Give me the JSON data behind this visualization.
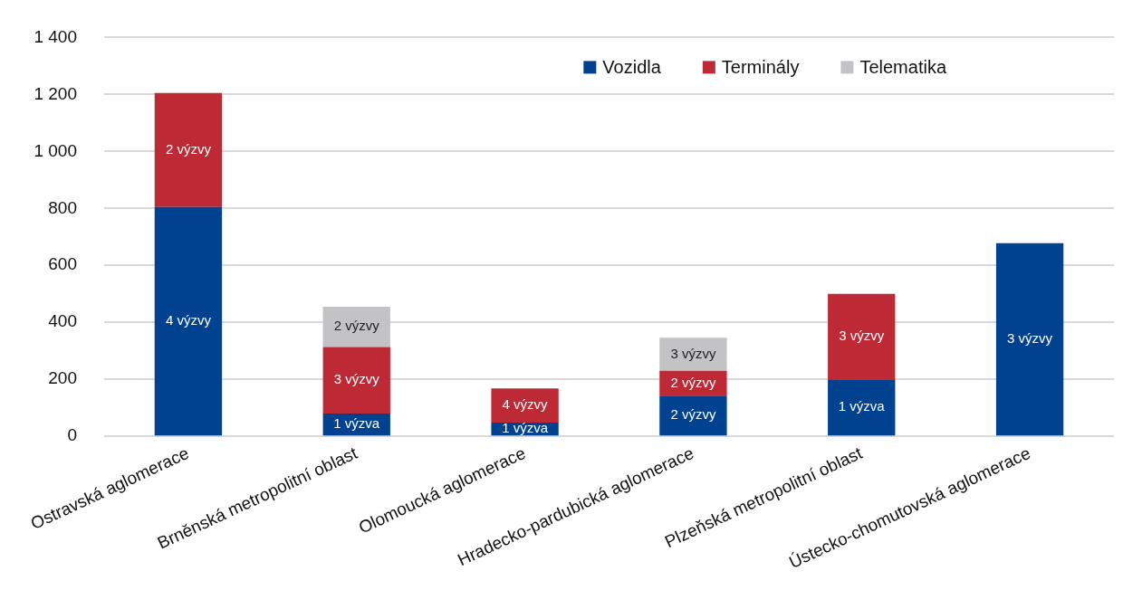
{
  "chart_data": {
    "type": "bar",
    "stacked": true,
    "categories": [
      "Ostravská aglomerace",
      "Brněnská metropolitní oblast",
      "Olomoucká aglomerace",
      "Hradecko-pardubická aglomerace",
      "Plzeňská metropolitní oblast",
      "Ústecko-chomutovská aglomerace"
    ],
    "series": [
      {
        "name": "Vozidla",
        "color": "#00428f",
        "values": [
          805,
          80,
          48,
          143,
          200,
          678
        ]
      },
      {
        "name": "Terminály",
        "color": "#bd2935",
        "values": [
          400,
          233,
          120,
          87,
          300,
          null
        ]
      },
      {
        "name": "Telematika",
        "color": "#c3c3c5",
        "values": [
          null,
          142,
          null,
          116,
          null,
          null
        ]
      }
    ],
    "annotations": [
      "4 výzvy",
      "2 výzvy",
      "1 výzva",
      "3 výzvy",
      "2 výzvy",
      "1 výzva",
      "4 výzvy",
      "2 výzvy",
      "2 výzvy",
      "3 výzvy",
      "1 výzva",
      "3 výzvy",
      "3 výzvy"
    ],
    "ylim": [
      0,
      1400
    ],
    "yticks": [
      {
        "value": 0,
        "label": "0"
      },
      {
        "value": 200,
        "label": "200"
      },
      {
        "value": 400,
        "label": "400"
      },
      {
        "value": 600,
        "label": "600"
      },
      {
        "value": 800,
        "label": "800"
      },
      {
        "value": 1000,
        "label": "1 000"
      },
      {
        "value": 1200,
        "label": "1 200"
      },
      {
        "value": 1400,
        "label": "1 400"
      }
    ],
    "grid": "y",
    "legend": "top right"
  }
}
